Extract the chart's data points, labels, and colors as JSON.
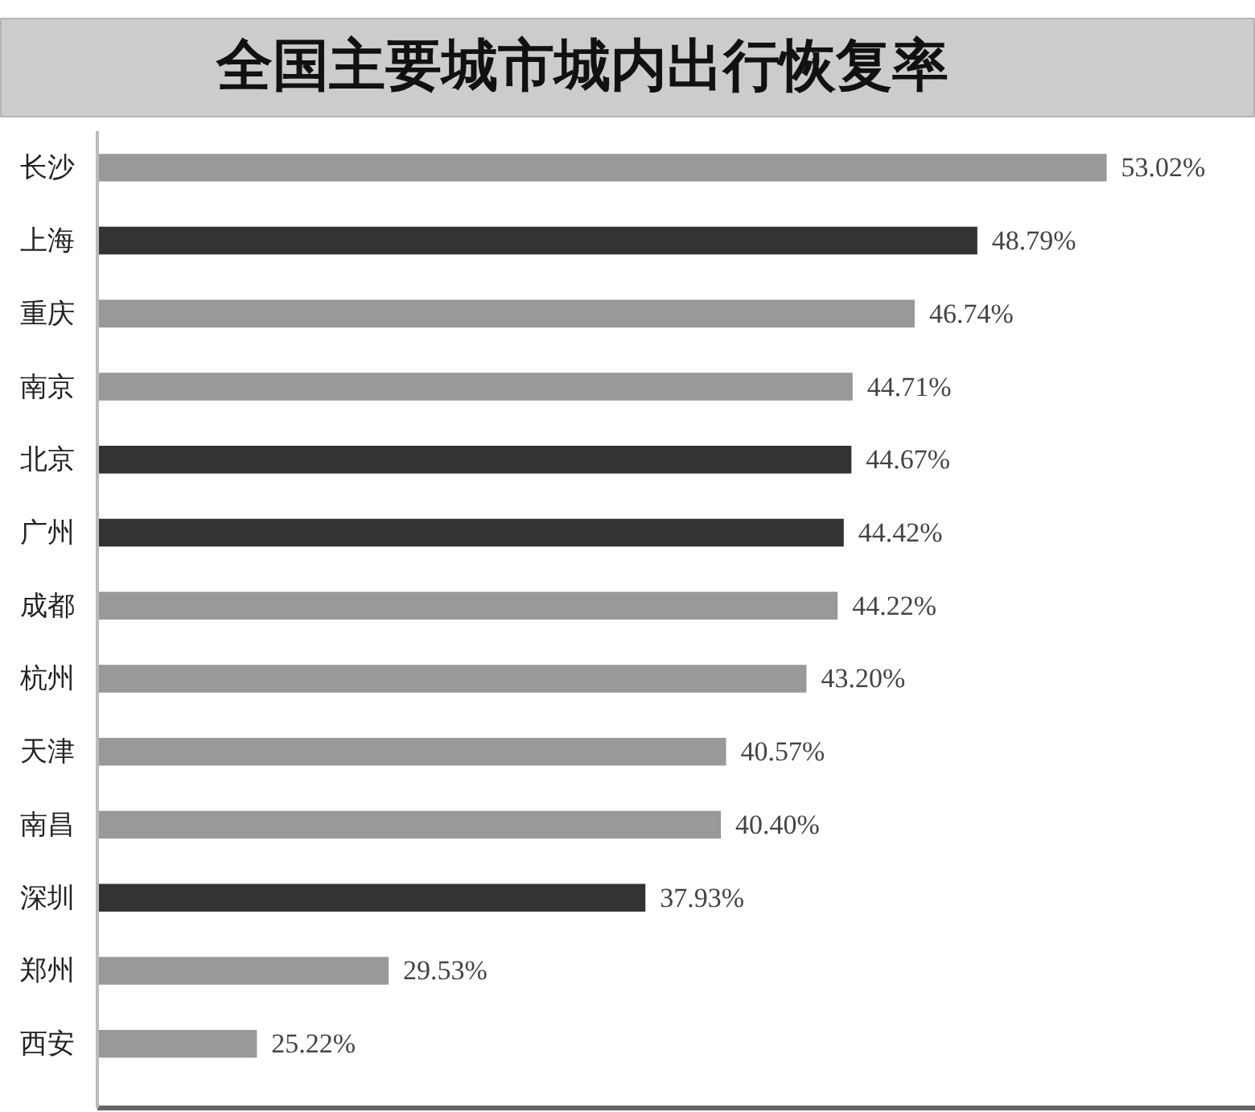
{
  "chart_data": {
    "type": "bar",
    "orientation": "horizontal",
    "title": "全国主要城市城内出行恢复率",
    "categories": [
      "长沙",
      "上海",
      "重庆",
      "南京",
      "北京",
      "广州",
      "成都",
      "杭州",
      "天津",
      "南昌",
      "深圳",
      "郑州",
      "西安"
    ],
    "values": [
      53.02,
      48.79,
      46.74,
      44.71,
      44.67,
      44.42,
      44.22,
      43.2,
      40.57,
      40.4,
      37.93,
      29.53,
      25.22
    ],
    "value_labels": [
      "53.02%",
      "48.79%",
      "46.74%",
      "44.71%",
      "44.67%",
      "44.42%",
      "44.22%",
      "43.20%",
      "40.57%",
      "40.40%",
      "37.93%",
      "29.53%",
      "25.22%"
    ],
    "colors": [
      "#999999",
      "#333333",
      "#999999",
      "#999999",
      "#333333",
      "#333333",
      "#999999",
      "#999999",
      "#999999",
      "#999999",
      "#333333",
      "#999999",
      "#999999"
    ],
    "xlim": [
      20,
      57.9
    ],
    "tick_labels": "y"
  }
}
